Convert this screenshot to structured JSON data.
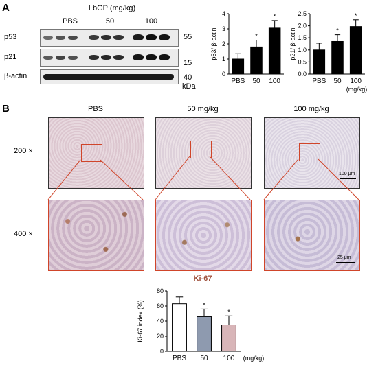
{
  "panel_a": {
    "letter": "A",
    "treatment_label": "LbGP (mg/kg)",
    "lanes": [
      "PBS",
      "50",
      "100"
    ],
    "rows": [
      {
        "protein": "p53",
        "mw": "55"
      },
      {
        "protein": "p21",
        "mw": "15"
      },
      {
        "protein": "β-actin",
        "mw": "40"
      }
    ],
    "kda_label": "kDa"
  },
  "panel_b": {
    "letter": "B",
    "columns": [
      "PBS",
      "50 mg/kg",
      "100 mg/kg"
    ],
    "mag_low": "200 ×",
    "mag_high": "400 ×",
    "scale_low": "100 μm",
    "scale_high": "25 μm",
    "stain": "Ki-67"
  },
  "colors": {
    "ihc_bg": "#e7d6dc",
    "ki67_label": "#a0523e",
    "roi": "#d0452a",
    "bar_black": "#000000",
    "bar_pbs": "#ffffff",
    "bar_50": "#8e9aaf",
    "bar_100": "#d8b5b8"
  },
  "chart_data": [
    {
      "type": "bar",
      "categories": [
        "PBS",
        "50",
        "100"
      ],
      "values": [
        1.0,
        1.8,
        3.05
      ],
      "errors": [
        0.35,
        0.45,
        0.5
      ],
      "significance": [
        "",
        "*",
        "*"
      ],
      "ylabel": "p53/ β-actin",
      "ylim": [
        0,
        4
      ],
      "yticks": [
        "0",
        "1",
        "2",
        "3",
        "4"
      ]
    },
    {
      "type": "bar",
      "categories": [
        "PBS",
        "50",
        "100"
      ],
      "values": [
        1.0,
        1.35,
        1.97
      ],
      "errors": [
        0.28,
        0.28,
        0.28
      ],
      "significance": [
        "",
        "*",
        "*"
      ],
      "ylabel": "p21/ β-actin",
      "xunit": "(mg/kg)",
      "ylim": [
        0,
        2.5
      ],
      "yticks": [
        "0.0",
        "0.5",
        "1.0",
        "1.5",
        "2.0",
        "2.5"
      ]
    },
    {
      "type": "bar",
      "categories": [
        "PBS",
        "50",
        "100"
      ],
      "values": [
        63,
        46,
        35
      ],
      "errors": [
        9,
        10,
        12
      ],
      "significance": [
        "",
        "*",
        "*"
      ],
      "ylabel": "Ki-67 index (%)",
      "xunit": "(mg/kg)",
      "ylim": [
        0,
        80
      ],
      "yticks": [
        "0",
        "20",
        "40",
        "60",
        "80"
      ]
    }
  ]
}
